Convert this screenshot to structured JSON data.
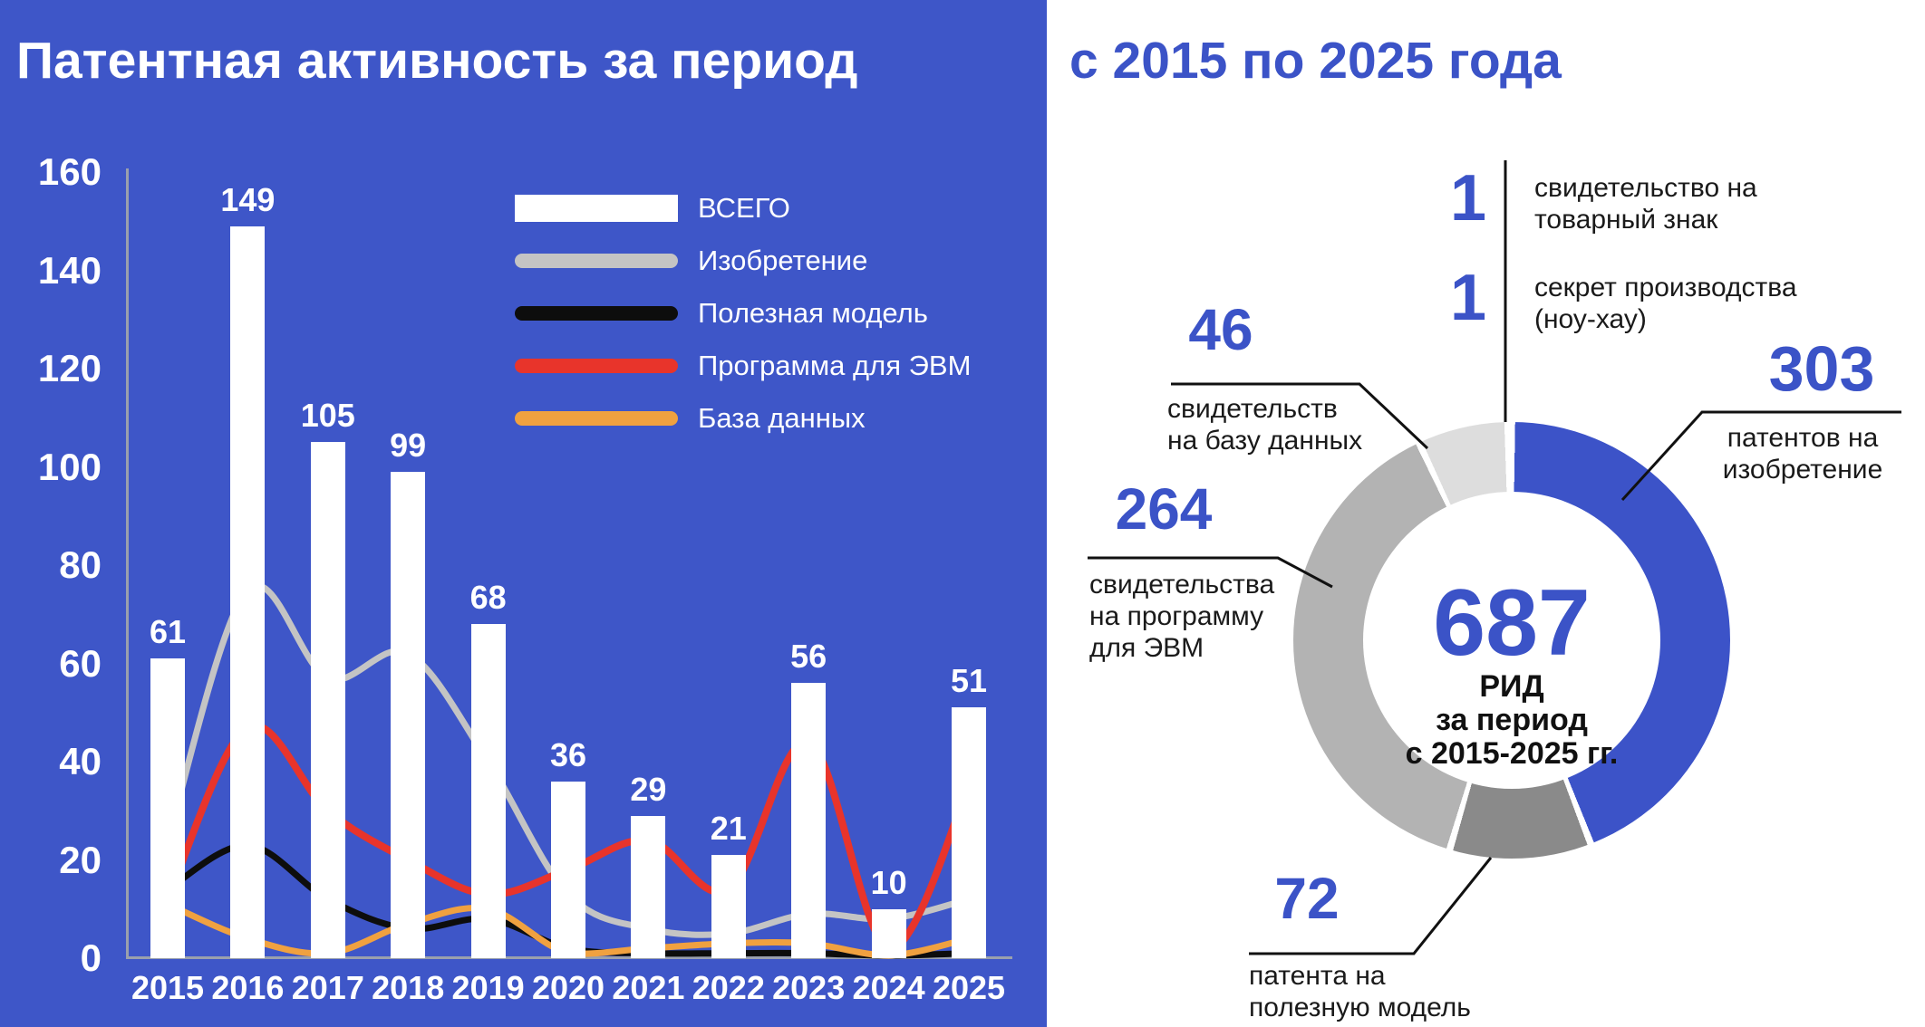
{
  "title": {
    "part1": "Патентная активность за период",
    "part2": "с 2015 по 2025 года"
  },
  "colors": {
    "background_blue": "#3E56C8",
    "accent_blue": "#3B53C7",
    "bar_white": "#FFFFFF",
    "axis_gray": "#9aa0ad",
    "line_invention_gray": "#C4C4C4",
    "line_utility_black": "#0D0D0D",
    "line_software_red": "#E8342B",
    "line_database_orange": "#F0A140",
    "donut_invention_blue": "#3C53C8",
    "donut_software_gray": "#B3B3B3",
    "donut_utility_darkgray": "#8A8A8A",
    "donut_database_lightgray": "#DDDDDD",
    "callout_line_black": "#111111"
  },
  "chart_data": [
    {
      "type": "bar",
      "title": "Патентная активность за период с 2015 по 2025 года",
      "categories": [
        "2015",
        "2016",
        "2017",
        "2018",
        "2019",
        "2020",
        "2021",
        "2022",
        "2023",
        "2024",
        "2025"
      ],
      "series": [
        {
          "name": "ВСЕГО",
          "kind": "bar",
          "color": "#FFFFFF",
          "values": [
            61,
            149,
            105,
            99,
            68,
            36,
            29,
            21,
            56,
            10,
            51
          ]
        },
        {
          "name": "Изобретение",
          "kind": "line",
          "color": "#C4C4C4",
          "values": [
            24,
            75,
            57,
            62,
            40,
            13,
            6,
            5,
            9,
            8,
            12
          ]
        },
        {
          "name": "Полезная модель",
          "kind": "line",
          "color": "#0D0D0D",
          "values": [
            14,
            23,
            12,
            6,
            8,
            2,
            1,
            1,
            1,
            0,
            1
          ]
        },
        {
          "name": "Программа для ЭВМ",
          "kind": "line",
          "color": "#E8342B",
          "values": [
            12,
            47,
            30,
            20,
            13,
            18,
            24,
            14,
            44,
            2,
            35
          ]
        },
        {
          "name": "База данных",
          "kind": "line",
          "color": "#F0A140",
          "values": [
            11,
            4,
            1,
            7,
            10,
            1,
            2,
            3,
            3,
            0,
            4
          ]
        }
      ],
      "xlabel": "",
      "ylabel": "",
      "ylim": [
        0,
        160
      ],
      "yticks": [
        0,
        20,
        40,
        60,
        80,
        100,
        120,
        140,
        160
      ],
      "grid": false,
      "legend_position": "top-right-inside",
      "note": "line series values estimated from smoothed curves; bar values labeled on chart"
    },
    {
      "type": "pie",
      "title": "687 РИД за период с 2015-2025 гг.",
      "labels": [
        "патентов на изобретение",
        "патента на полезную модель",
        "свидетельства на программу для ЭВМ",
        "свидетельств на базу данных",
        "свидетельство на товарный знак",
        "секрет производства (ноу-хау)"
      ],
      "values": [
        303,
        72,
        264,
        46,
        1,
        1
      ],
      "colors": [
        "#3C53C8",
        "#8A8A8A",
        "#B3B3B3",
        "#DDDDDD",
        "#FFFFFF",
        "#FFFFFF"
      ],
      "total": 687,
      "donut": true,
      "clockwise_from_top": true
    }
  ],
  "donut": {
    "center_value": "687",
    "center_line1": "РИД",
    "center_line2": "за период",
    "center_line3": "с 2015-2025 гг.",
    "callouts": {
      "trademark": {
        "value": "1",
        "line1": "свидетельство на",
        "line2": "товарный знак"
      },
      "knowhow": {
        "value": "1",
        "line1": "секрет производства",
        "line2": "(ноу-хау)"
      },
      "database": {
        "value": "46",
        "line1": "свидетельств",
        "line2": "на базу данных"
      },
      "software": {
        "value": "264",
        "line1": "свидетельства",
        "line2": "на программу",
        "line3": "для ЭВМ"
      },
      "invention": {
        "value": "303",
        "line1": "патентов на",
        "line2": "изобретение"
      },
      "utility": {
        "value": "72",
        "line1": "патента на",
        "line2": "полезную модель"
      }
    }
  }
}
